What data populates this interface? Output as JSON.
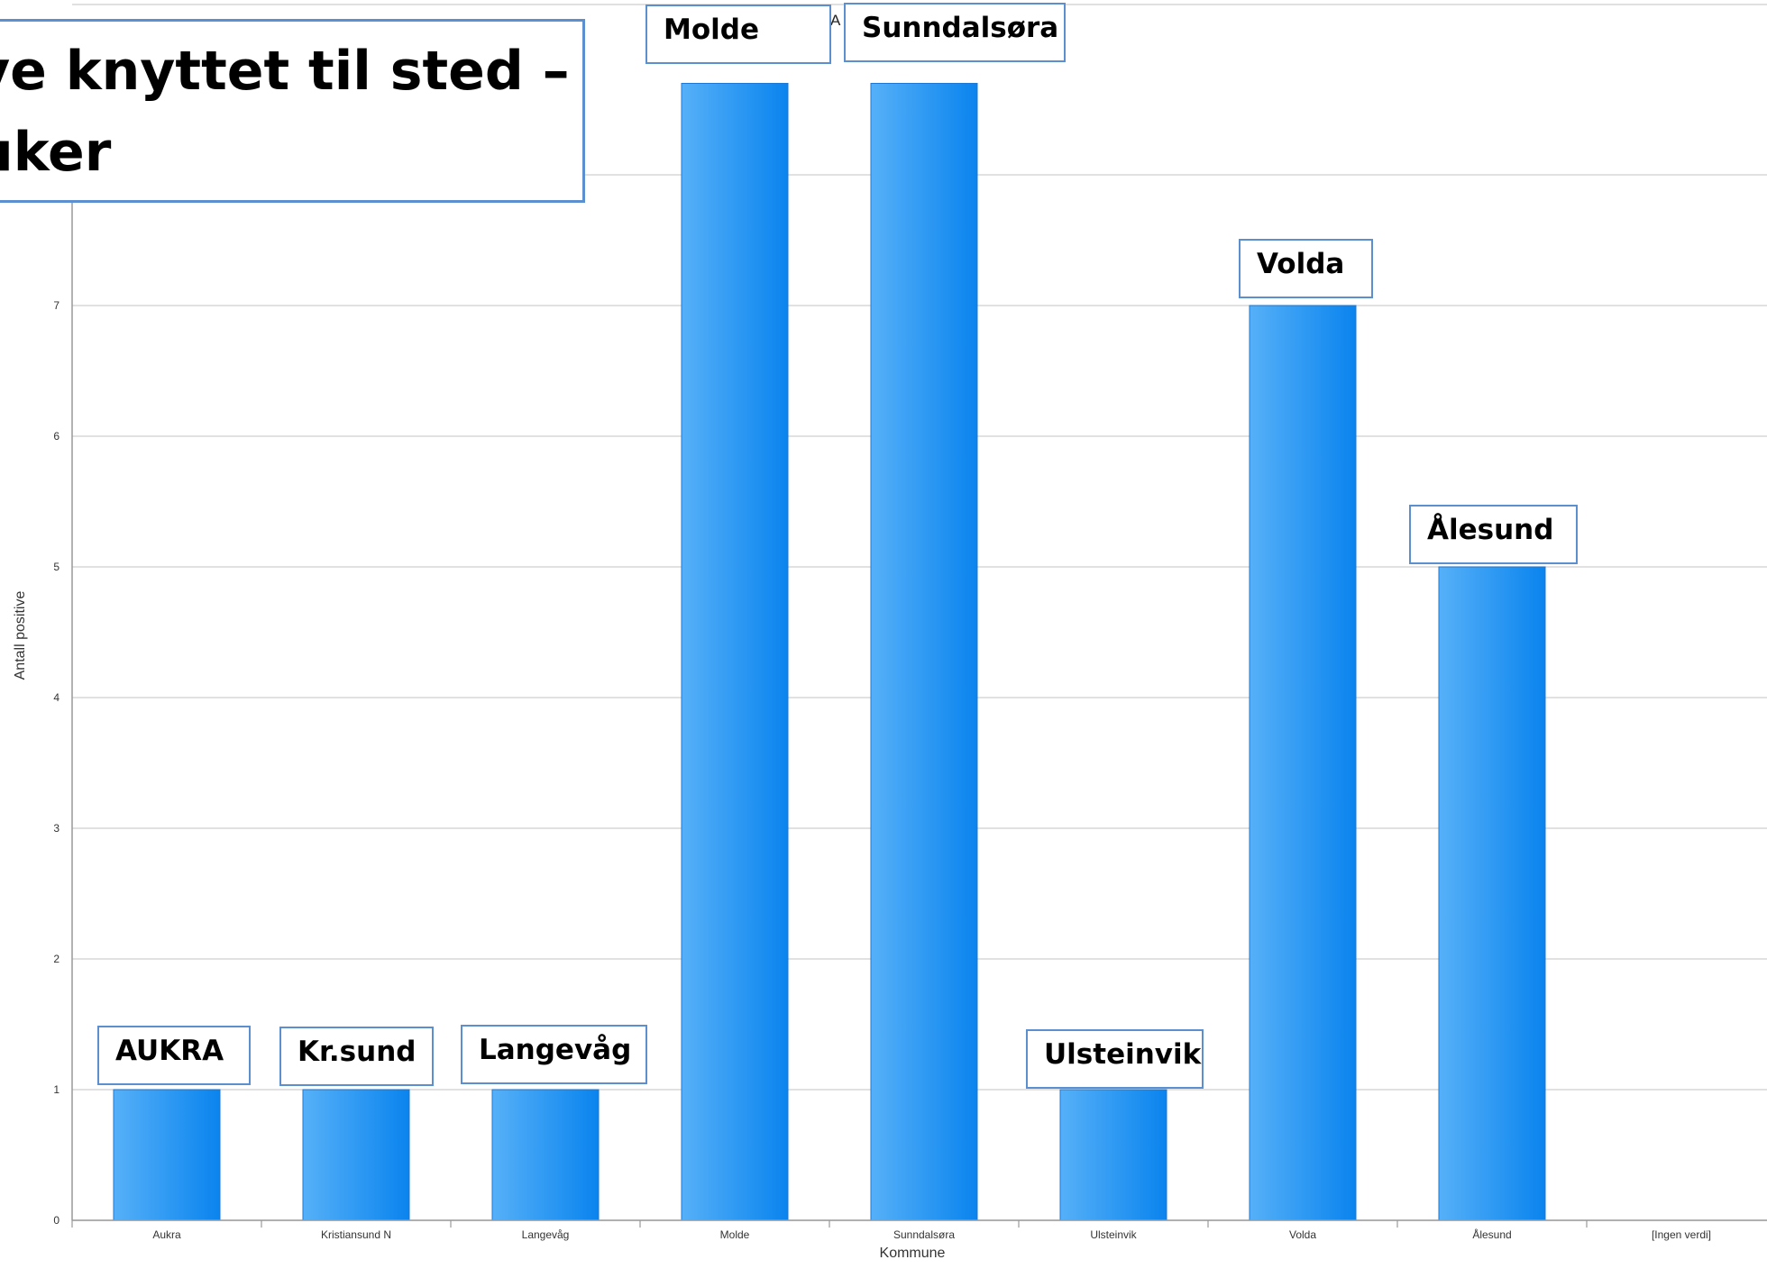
{
  "heading": {
    "line1": "ve knyttet til sted –",
    "line2": " uker"
  },
  "title_fragment": "A",
  "callouts": {
    "aukra": "AUKRA",
    "krsund": "Kr.sund",
    "langevag": "Langevåg",
    "molde": "Molde",
    "sunndalsora": "Sunndalsøra",
    "ulsteinvik": "Ulsteinvik",
    "volda": "Volda",
    "alesund": "Ålesund"
  },
  "chart_data": {
    "type": "bar",
    "title": "",
    "xlabel": "Kommune",
    "ylabel": "Antall positive",
    "categories": [
      "Aukra",
      "Kristiansund N",
      "Langevåg",
      "Molde",
      "Sunndalsøra",
      "Ulsteinvik",
      "Volda",
      "Ålesund",
      "[Ingen verdi]"
    ],
    "values": [
      1,
      1,
      1,
      9,
      9,
      1,
      7,
      5,
      0
    ],
    "ylim": [
      0,
      8.7
    ],
    "yticks": [
      0,
      1,
      2,
      3,
      4,
      5,
      6,
      7
    ],
    "grid": true,
    "bar_color": "#1a8cf0"
  }
}
